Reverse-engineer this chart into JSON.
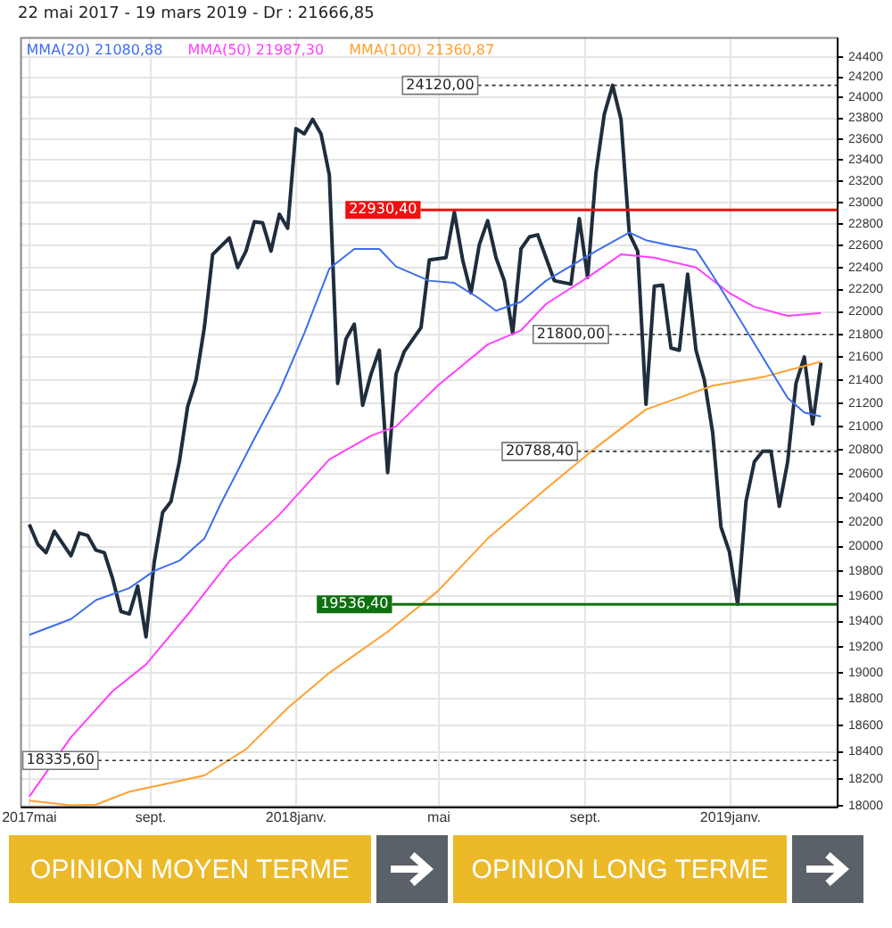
{
  "chart_data": {
    "type": "line",
    "title": "22 mai 2017 - 19 mars 2019 - Dr : 21666,85",
    "log": true,
    "grid": true,
    "legend": "top left",
    "marker": "none",
    "line_style": "solid",
    "xlim": [
      "2017-05-15",
      "2019-04-01"
    ],
    "xticks": [
      {
        "value": "2017-05-22",
        "label": "2017mai"
      },
      {
        "value": "2017-09-01",
        "label": "sept."
      },
      {
        "value": "2018-01-01",
        "label": "2018janv."
      },
      {
        "value": "2018-05-01",
        "label": "mai"
      },
      {
        "value": "2018-09-01",
        "label": "sept."
      },
      {
        "value": "2019-01-01",
        "label": "2019janv."
      }
    ],
    "ylim": [
      17990,
      24590
    ],
    "yticks": [
      18000,
      18200,
      18400,
      18600,
      18800,
      19000,
      19200,
      19400,
      19600,
      19800,
      20000,
      20200,
      20400,
      20600,
      20800,
      21000,
      21200,
      21400,
      21600,
      21800,
      22000,
      22200,
      22400,
      22600,
      22800,
      23000,
      23200,
      23400,
      23600,
      23800,
      24000,
      24200,
      24400
    ],
    "series": [
      {
        "color": "#1f2d3d",
        "x": [
          "2017-05-22",
          "2017-05-29",
          "2017-06-05",
          "2017-06-12",
          "2017-06-26",
          "2017-07-03",
          "2017-07-10",
          "2017-07-17",
          "2017-07-24",
          "2017-07-31",
          "2017-08-07",
          "2017-08-14",
          "2017-08-21",
          "2017-08-28",
          "2017-09-04",
          "2017-09-11",
          "2017-09-18",
          "2017-09-25",
          "2017-10-02",
          "2017-10-09",
          "2017-10-16",
          "2017-10-23",
          "2017-11-06",
          "2017-11-13",
          "2017-11-20",
          "2017-11-27",
          "2017-12-04",
          "2017-12-11",
          "2017-12-18",
          "2017-12-25",
          "2018-01-01",
          "2018-01-08",
          "2018-01-15",
          "2018-01-22",
          "2018-01-29",
          "2018-02-05",
          "2018-02-12",
          "2018-02-19",
          "2018-02-26",
          "2018-03-05",
          "2018-03-12",
          "2018-03-19",
          "2018-03-26",
          "2018-04-02",
          "2018-04-16",
          "2018-04-23",
          "2018-05-07",
          "2018-05-14",
          "2018-05-21",
          "2018-05-28",
          "2018-06-04",
          "2018-06-11",
          "2018-06-18",
          "2018-06-25",
          "2018-07-02",
          "2018-07-09",
          "2018-07-16",
          "2018-07-23",
          "2018-07-30",
          "2018-08-06",
          "2018-08-20",
          "2018-08-27",
          "2018-09-03",
          "2018-09-10",
          "2018-09-17",
          "2018-09-24",
          "2018-10-01",
          "2018-10-08",
          "2018-10-15",
          "2018-10-22",
          "2018-10-29",
          "2018-11-05",
          "2018-11-12",
          "2018-11-19",
          "2018-11-26",
          "2018-12-03",
          "2018-12-10",
          "2018-12-17",
          "2018-12-24",
          "2018-12-31",
          "2019-01-07",
          "2019-01-14",
          "2019-01-21",
          "2019-01-28",
          "2019-02-04",
          "2019-02-11",
          "2019-02-18",
          "2019-02-25",
          "2019-03-04",
          "2019-03-11",
          "2019-03-18"
        ],
        "values": [
          20180,
          20020,
          19950,
          20125,
          19925,
          20110,
          20090,
          19970,
          19950,
          19740,
          19480,
          19460,
          19680,
          19280,
          19880,
          20280,
          20370,
          20700,
          21170,
          21400,
          21860,
          22520,
          22670,
          22400,
          22550,
          22820,
          22810,
          22550,
          22890,
          22760,
          23700,
          23650,
          23790,
          23650,
          23260,
          21370,
          21760,
          21890,
          21180,
          21450,
          21660,
          20610,
          21450,
          21650,
          21860,
          22470,
          22490,
          22910,
          22470,
          22170,
          22610,
          22830,
          22490,
          22280,
          21810,
          22570,
          22680,
          22700,
          22490,
          22280,
          22250,
          22850,
          22310,
          23280,
          23840,
          24120,
          23790,
          22710,
          22550,
          21190,
          22230,
          22240,
          21680,
          21660,
          22340,
          21660,
          21400,
          20950,
          20160,
          19960,
          19536,
          20370,
          20700,
          20790,
          20790,
          20330,
          20700,
          21370,
          21600,
          21020,
          21550
        ]
      },
      {
        "name": "MMA(20) 21080,88",
        "color": "#3d6ef0",
        "x": [
          "2017-05-22",
          "2017-06-26",
          "2017-07-17",
          "2017-08-14",
          "2017-09-04",
          "2017-09-25",
          "2017-10-16",
          "2017-10-30",
          "2017-11-27",
          "2017-12-18",
          "2018-01-08",
          "2018-01-29",
          "2018-02-19",
          "2018-03-12",
          "2018-03-26",
          "2018-04-23",
          "2018-05-14",
          "2018-06-04",
          "2018-06-18",
          "2018-07-09",
          "2018-07-30",
          "2018-09-10",
          "2018-10-08",
          "2018-10-22",
          "2018-11-12",
          "2018-12-03",
          "2018-12-17",
          "2019-01-07",
          "2019-01-28",
          "2019-02-18",
          "2019-03-04",
          "2019-03-18"
        ],
        "values": [
          19295,
          19420,
          19570,
          19665,
          19805,
          19885,
          20065,
          20355,
          20895,
          21300,
          21810,
          22390,
          22570,
          22570,
          22410,
          22280,
          22260,
          22120,
          22010,
          22090,
          22280,
          22550,
          22720,
          22650,
          22600,
          22560,
          22330,
          21965,
          21600,
          21245,
          21120,
          21085
        ]
      },
      {
        "name": "MMA(50) 21987,30",
        "color": "#ff40ff",
        "x": [
          "2017-05-22",
          "2017-06-26",
          "2017-07-31",
          "2017-08-28",
          "2017-10-02",
          "2017-11-06",
          "2017-12-18",
          "2018-01-29",
          "2018-03-05",
          "2018-03-26",
          "2018-04-30",
          "2018-06-11",
          "2018-07-09",
          "2018-07-30",
          "2018-09-03",
          "2018-10-01",
          "2018-10-29",
          "2018-12-03",
          "2018-12-31",
          "2019-01-21",
          "2019-02-18",
          "2019-03-18"
        ],
        "values": [
          18070,
          18510,
          18860,
          19065,
          19455,
          19880,
          20260,
          20720,
          20920,
          21000,
          21350,
          21710,
          21835,
          22070,
          22310,
          22520,
          22490,
          22400,
          22170,
          22045,
          21965,
          21990
        ]
      },
      {
        "name": "MMA(100) 21360,87",
        "color": "#ffa030",
        "x": [
          "2017-05-22",
          "2017-06-26",
          "2017-07-17",
          "2017-08-14",
          "2017-09-18",
          "2017-10-16",
          "2017-11-20",
          "2017-12-25",
          "2018-01-29",
          "2018-03-19",
          "2018-04-30",
          "2018-06-11",
          "2018-07-30",
          "2018-09-10",
          "2018-10-22",
          "2018-12-17",
          "2019-01-28",
          "2019-03-18"
        ],
        "values": [
          18040,
          18005,
          18010,
          18105,
          18170,
          18225,
          18420,
          18730,
          19000,
          19320,
          19640,
          20065,
          20475,
          20820,
          21145,
          21350,
          21425,
          21560
        ]
      }
    ],
    "ref_lines": [
      {
        "axis": "y",
        "value": 24120,
        "label": "24120,00",
        "line_style": "dotted"
      },
      {
        "axis": "y",
        "value": 22930.4,
        "label": "22930,40",
        "color": "#ee1111",
        "line_style": "solid"
      },
      {
        "axis": "y",
        "value": 21800,
        "label": "21800,00",
        "line_style": "dotted"
      },
      {
        "axis": "y",
        "value": 20788.4,
        "label": "20788,40",
        "line_style": "dotted"
      },
      {
        "axis": "y",
        "value": 19536.4,
        "label": "19536,40",
        "color": "#107010",
        "line_style": "solid"
      },
      {
        "axis": "y",
        "value": 18335.6,
        "label": "18335,60",
        "line_style": "dotted"
      }
    ],
    "annotations": [
      "OPINION MOYEN TERME",
      "OPINION LONG TERME"
    ]
  }
}
